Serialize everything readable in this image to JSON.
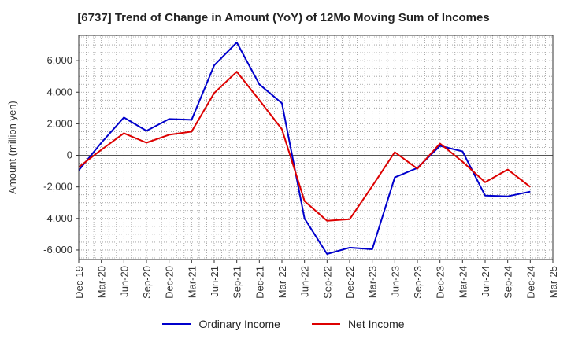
{
  "chart_data": {
    "type": "line",
    "title": "[6737]  Trend of Change in Amount (YoY) of 12Mo Moving Sum of Incomes",
    "xlabel": "",
    "ylabel": "Amount (million yen)",
    "ylim": [
      -6600,
      7600
    ],
    "yticks": [
      6000,
      4000,
      2000,
      0,
      -2000,
      -4000,
      -6000
    ],
    "ytick_labels": [
      "6,000",
      "4,000",
      "2,000",
      "0",
      "-2,000",
      "-4,000",
      "-6,000"
    ],
    "x": [
      "Dec-19",
      "Mar-20",
      "Jun-20",
      "Sep-20",
      "Dec-20",
      "Mar-21",
      "Jun-21",
      "Sep-21",
      "Dec-21",
      "Mar-22",
      "Jun-22",
      "Sep-22",
      "Dec-22",
      "Mar-23",
      "Jun-23",
      "Sep-23",
      "Dec-23",
      "Mar-24",
      "Jun-24",
      "Sep-24",
      "Dec-24",
      "Mar-25"
    ],
    "grid": true,
    "legend_position": "bottom",
    "series": [
      {
        "name": "Ordinary Income",
        "color": "#0000cc",
        "values": [
          -950,
          800,
          2400,
          1550,
          2300,
          2250,
          5700,
          7150,
          4500,
          3300,
          -4000,
          -6250,
          -5850,
          -5950,
          -1400,
          -800,
          600,
          250,
          -2550,
          -2600,
          -2300,
          null
        ]
      },
      {
        "name": "Net Income",
        "color": "#dd0000",
        "values": [
          -750,
          350,
          1400,
          800,
          1300,
          1500,
          3950,
          5300,
          3500,
          1650,
          -2900,
          -4150,
          -4050,
          -1950,
          200,
          -850,
          750,
          -400,
          -1700,
          -900,
          -2000,
          null
        ]
      }
    ]
  }
}
